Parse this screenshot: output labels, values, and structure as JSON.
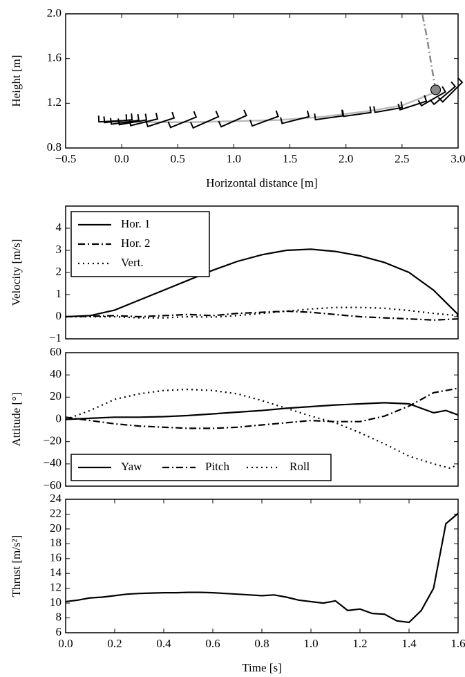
{
  "chart_data": [
    {
      "type": "line",
      "xlabel": "Horizontal distance [m]",
      "ylabel": "Height [m]",
      "xlim": [
        -0.5,
        3.0
      ],
      "ylim": [
        0.8,
        2.0
      ],
      "xticks": [
        {
          "value": -0.5,
          "label": "−0.5"
        },
        {
          "value": 0,
          "label": "0.0"
        },
        0.5,
        {
          "value": 1,
          "label": "1.0"
        },
        1.5,
        {
          "value": 2,
          "label": "2.0"
        },
        2.5,
        {
          "value": 3,
          "label": "3.0"
        }
      ],
      "yticks": [
        0.8,
        1.2,
        1.6,
        {
          "value": 2,
          "label": "2.0"
        }
      ],
      "series": [
        {
          "color": "#bbbbbb",
          "style": "solid",
          "x": [
            -0.1,
            0.2,
            0.6,
            1.0,
            1.4,
            1.8,
            2.2,
            2.5,
            2.8
          ],
          "values": [
            1.04,
            1.03,
            1.03,
            1.04,
            1.05,
            1.08,
            1.13,
            1.18,
            1.3
          ]
        },
        {
          "color": "#888888",
          "style": "dashdot",
          "x": [
            2.8,
            2.76,
            2.72,
            2.68
          ],
          "values": [
            1.32,
            1.55,
            1.8,
            2.0
          ]
        },
        {
          "color": "#888888",
          "style": "marker",
          "x": [
            2.8
          ],
          "values": [
            1.32
          ]
        }
      ],
      "poses": {
        "x": [
          -0.08,
          -0.03,
          0.03,
          0.1,
          0.2,
          0.35,
          0.55,
          0.75,
          1.0,
          1.28,
          1.55,
          1.85,
          2.1,
          2.38,
          2.6,
          2.78,
          2.88,
          2.95
        ],
        "y": [
          1.04,
          1.04,
          1.03,
          1.03,
          1.03,
          1.03,
          1.03,
          1.03,
          1.04,
          1.04,
          1.05,
          1.07,
          1.1,
          1.14,
          1.18,
          1.24,
          1.27,
          1.3
        ],
        "angle": [
          3,
          6,
          8,
          10,
          14,
          18,
          22,
          24,
          24,
          20,
          14,
          8,
          8,
          10,
          18,
          30,
          40,
          45
        ]
      }
    },
    {
      "type": "line",
      "ylabel": "Velocity [m/s]",
      "xlim": [
        0,
        1.6
      ],
      "ylim": [
        -1,
        5
      ],
      "yticks": [
        {
          "value": -1,
          "label": "−1"
        },
        0,
        1,
        2,
        3,
        4
      ],
      "legend": "upper left",
      "legend_columns": 1,
      "series": [
        {
          "name": "Hor. 1",
          "color": "#000000",
          "style": "solid",
          "x": [
            0,
            0.1,
            0.2,
            0.3,
            0.4,
            0.5,
            0.6,
            0.7,
            0.8,
            0.9,
            1.0,
            1.1,
            1.2,
            1.3,
            1.4,
            1.5,
            1.6
          ],
          "values": [
            0,
            0.05,
            0.3,
            0.75,
            1.2,
            1.65,
            2.1,
            2.5,
            2.8,
            3.0,
            3.05,
            2.95,
            2.75,
            2.45,
            2.0,
            1.2,
            0.1
          ]
        },
        {
          "name": "Hor. 2",
          "color": "#000000",
          "style": "dashdot",
          "x": [
            0,
            0.1,
            0.2,
            0.3,
            0.4,
            0.5,
            0.6,
            0.7,
            0.8,
            0.9,
            1.0,
            1.1,
            1.2,
            1.3,
            1.4,
            1.5,
            1.6
          ],
          "values": [
            0,
            0.02,
            0.05,
            0,
            0.05,
            0.1,
            0.05,
            0.15,
            0.2,
            0.25,
            0.2,
            0.1,
            0,
            -0.05,
            -0.1,
            -0.15,
            -0.1
          ]
        },
        {
          "name": "Vert.",
          "color": "#000000",
          "style": "dotted",
          "x": [
            0,
            0.1,
            0.2,
            0.3,
            0.4,
            0.5,
            0.6,
            0.7,
            0.8,
            0.9,
            1.0,
            1.1,
            1.2,
            1.3,
            1.4,
            1.5,
            1.6
          ],
          "values": [
            0,
            0,
            0,
            -0.05,
            -0.05,
            0,
            -0.02,
            0.05,
            0.15,
            0.25,
            0.35,
            0.42,
            0.42,
            0.38,
            0.28,
            0.15,
            0.05
          ]
        }
      ]
    },
    {
      "type": "line",
      "ylabel": "Attitude [°]",
      "xlim": [
        0,
        1.6
      ],
      "ylim": [
        -60,
        60
      ],
      "yticks": [
        {
          "value": -60,
          "label": "−60"
        },
        {
          "value": -40,
          "label": "−40"
        },
        {
          "value": -20,
          "label": "−20"
        },
        0,
        20,
        40,
        60
      ],
      "legend": "lower left",
      "legend_columns": 3,
      "series": [
        {
          "name": "Yaw",
          "color": "#000000",
          "style": "solid",
          "x": [
            0,
            0.1,
            0.2,
            0.3,
            0.4,
            0.5,
            0.6,
            0.7,
            0.8,
            0.9,
            1.0,
            1.1,
            1.2,
            1.3,
            1.4,
            1.5,
            1.55,
            1.6
          ],
          "values": [
            0,
            1,
            2,
            2,
            2.5,
            3.5,
            5,
            6.5,
            8,
            10,
            11.5,
            13,
            14,
            15,
            14,
            6,
            8,
            4
          ]
        },
        {
          "name": "Pitch",
          "color": "#000000",
          "style": "dashdot",
          "x": [
            0,
            0.1,
            0.2,
            0.3,
            0.4,
            0.5,
            0.6,
            0.7,
            0.8,
            0.9,
            1.0,
            1.1,
            1.2,
            1.3,
            1.4,
            1.5,
            1.6
          ],
          "values": [
            2,
            -1,
            -4,
            -6,
            -7,
            -8,
            -8,
            -7,
            -5,
            -3,
            -1,
            -2,
            -2,
            3,
            12,
            24,
            28
          ]
        },
        {
          "name": "Roll",
          "color": "#000000",
          "style": "dotted",
          "x": [
            0,
            0.1,
            0.2,
            0.3,
            0.4,
            0.5,
            0.6,
            0.7,
            0.8,
            0.9,
            1.0,
            1.1,
            1.2,
            1.3,
            1.4,
            1.5,
            1.57,
            1.6
          ],
          "values": [
            0,
            8,
            18,
            23,
            26,
            27,
            26,
            23,
            17,
            10,
            3,
            -3,
            -12,
            -22,
            -33,
            -40,
            -44,
            -40
          ]
        }
      ]
    },
    {
      "type": "line",
      "xlabel": "Time [s]",
      "ylabel": "Thrust [m/s²]",
      "xlim": [
        0,
        1.6
      ],
      "ylim": [
        6,
        24
      ],
      "xticks": [
        {
          "value": 0,
          "label": "0.0"
        },
        0.2,
        0.4,
        0.6,
        0.8,
        {
          "value": 1,
          "label": "1.0"
        },
        1.2,
        1.4,
        1.6
      ],
      "yticks": [
        6,
        8,
        10,
        12,
        14,
        16,
        18,
        20,
        22,
        24
      ],
      "series": [
        {
          "color": "#000000",
          "style": "solid",
          "x": [
            0,
            0.05,
            0.1,
            0.15,
            0.2,
            0.25,
            0.3,
            0.35,
            0.4,
            0.45,
            0.5,
            0.55,
            0.6,
            0.65,
            0.7,
            0.75,
            0.8,
            0.85,
            0.9,
            0.95,
            1.0,
            1.05,
            1.1,
            1.15,
            1.2,
            1.25,
            1.3,
            1.35,
            1.4,
            1.45,
            1.5,
            1.55,
            1.6
          ],
          "values": [
            10.2,
            10.4,
            10.7,
            10.8,
            11.0,
            11.2,
            11.3,
            11.35,
            11.4,
            11.4,
            11.45,
            11.45,
            11.4,
            11.3,
            11.2,
            11.1,
            11.0,
            11.1,
            10.8,
            10.4,
            10.2,
            10.0,
            10.3,
            9.0,
            9.2,
            8.6,
            8.5,
            7.6,
            7.4,
            9.0,
            12.0,
            20.7,
            22.1
          ]
        }
      ]
    }
  ]
}
